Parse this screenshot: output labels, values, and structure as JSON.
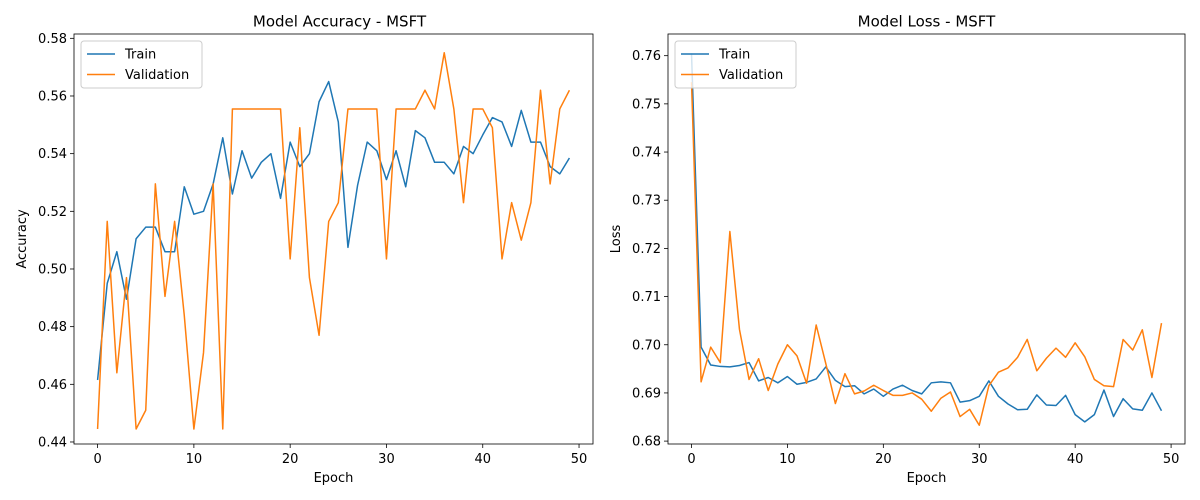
{
  "chart_data": [
    {
      "type": "line",
      "title": "Model Accuracy - MSFT",
      "xlabel": "Epoch",
      "ylabel": "Accuracy",
      "xlim": [
        -2.45,
        51.45
      ],
      "ylim": [
        0.4393,
        0.5815
      ],
      "xticks": [
        0,
        10,
        20,
        30,
        40,
        50
      ],
      "yticks": [
        0.44,
        0.46,
        0.48,
        0.5,
        0.52,
        0.54,
        0.56,
        0.58
      ],
      "ytick_labels": [
        "0.44",
        "0.46",
        "0.48",
        "0.50",
        "0.52",
        "0.54",
        "0.56",
        "0.58"
      ],
      "legend_position": "upper left",
      "grid": false,
      "x": [
        0,
        1,
        2,
        3,
        4,
        5,
        6,
        7,
        8,
        9,
        10,
        11,
        12,
        13,
        14,
        15,
        16,
        17,
        18,
        19,
        20,
        21,
        22,
        23,
        24,
        25,
        26,
        27,
        28,
        29,
        30,
        31,
        32,
        33,
        34,
        35,
        36,
        37,
        38,
        39,
        40,
        41,
        42,
        43,
        44,
        45,
        46,
        47,
        48,
        49
      ],
      "series": [
        {
          "name": "Train",
          "color": "#1f77b4",
          "values": [
            0.4615,
            0.495,
            0.506,
            0.4895,
            0.5105,
            0.5145,
            0.5145,
            0.506,
            0.506,
            0.5285,
            0.519,
            0.52,
            0.5295,
            0.5455,
            0.526,
            0.541,
            0.5315,
            0.537,
            0.54,
            0.5245,
            0.544,
            0.5355,
            0.54,
            0.558,
            0.565,
            0.551,
            0.5075,
            0.529,
            0.544,
            0.541,
            0.531,
            0.541,
            0.5285,
            0.548,
            0.5455,
            0.537,
            0.537,
            0.533,
            0.5425,
            0.54,
            0.5465,
            0.5525,
            0.551,
            0.5425,
            0.555,
            0.544,
            0.544,
            0.5355,
            0.533,
            0.5385
          ]
        },
        {
          "name": "Validation",
          "color": "#ff7f0e",
          "values": [
            0.4445,
            0.5165,
            0.464,
            0.497,
            0.4445,
            0.451,
            0.5295,
            0.4905,
            0.5165,
            0.484,
            0.4445,
            0.471,
            0.5295,
            0.4445,
            0.5555,
            0.5555,
            0.5555,
            0.5555,
            0.5555,
            0.5555,
            0.5035,
            0.549,
            0.497,
            0.477,
            0.5165,
            0.523,
            0.5555,
            0.5555,
            0.5555,
            0.5555,
            0.5035,
            0.5555,
            0.5555,
            0.5555,
            0.562,
            0.5555,
            0.575,
            0.5555,
            0.523,
            0.5555,
            0.5555,
            0.549,
            0.5035,
            0.523,
            0.51,
            0.523,
            0.562,
            0.5295,
            0.5555,
            0.562
          ]
        }
      ]
    },
    {
      "type": "line",
      "title": "Model Loss - MSFT",
      "xlabel": "Epoch",
      "ylabel": "Loss",
      "xlim": [
        -2.45,
        51.45
      ],
      "ylim": [
        0.6794,
        0.7645
      ],
      "xticks": [
        0,
        10,
        20,
        30,
        40,
        50
      ],
      "yticks": [
        0.68,
        0.69,
        0.7,
        0.71,
        0.72,
        0.73,
        0.74,
        0.75,
        0.76
      ],
      "ytick_labels": [
        "0.68",
        "0.69",
        "0.70",
        "0.71",
        "0.72",
        "0.73",
        "0.74",
        "0.75",
        "0.76"
      ],
      "legend_position": "upper left",
      "grid": false,
      "x": [
        0,
        1,
        2,
        3,
        4,
        5,
        6,
        7,
        8,
        9,
        10,
        11,
        12,
        13,
        14,
        15,
        16,
        17,
        18,
        19,
        20,
        21,
        22,
        23,
        24,
        25,
        26,
        27,
        28,
        29,
        30,
        31,
        32,
        33,
        34,
        35,
        36,
        37,
        38,
        39,
        40,
        41,
        42,
        43,
        44,
        45,
        46,
        47,
        48,
        49
      ],
      "series": [
        {
          "name": "Train",
          "color": "#1f77b4",
          "values": [
            0.7605,
            0.6995,
            0.6958,
            0.6955,
            0.6954,
            0.6957,
            0.6963,
            0.6925,
            0.6932,
            0.6921,
            0.6934,
            0.6918,
            0.6922,
            0.6929,
            0.6954,
            0.6926,
            0.6913,
            0.6915,
            0.6898,
            0.6908,
            0.6893,
            0.6908,
            0.6916,
            0.6905,
            0.6898,
            0.6921,
            0.6923,
            0.6921,
            0.6881,
            0.6884,
            0.6893,
            0.6925,
            0.6893,
            0.6877,
            0.6865,
            0.6866,
            0.6896,
            0.6875,
            0.6874,
            0.6895,
            0.6855,
            0.684,
            0.6855,
            0.6906,
            0.6851,
            0.6888,
            0.6867,
            0.6864,
            0.69,
            0.6863
          ]
        },
        {
          "name": "Validation",
          "color": "#ff7f0e",
          "values": [
            0.7545,
            0.6923,
            0.6995,
            0.6963,
            0.7235,
            0.7032,
            0.6928,
            0.6971,
            0.6905,
            0.696,
            0.7,
            0.6977,
            0.692,
            0.7041,
            0.6961,
            0.6878,
            0.694,
            0.6898,
            0.6904,
            0.6916,
            0.6905,
            0.6895,
            0.6895,
            0.69,
            0.6887,
            0.6862,
            0.6889,
            0.6902,
            0.6851,
            0.6866,
            0.6833,
            0.6915,
            0.6943,
            0.6952,
            0.6974,
            0.7011,
            0.6946,
            0.6972,
            0.6993,
            0.6974,
            0.7004,
            0.6975,
            0.6928,
            0.6915,
            0.6913,
            0.7011,
            0.6989,
            0.7031,
            0.6932,
            0.7045
          ]
        }
      ]
    }
  ]
}
